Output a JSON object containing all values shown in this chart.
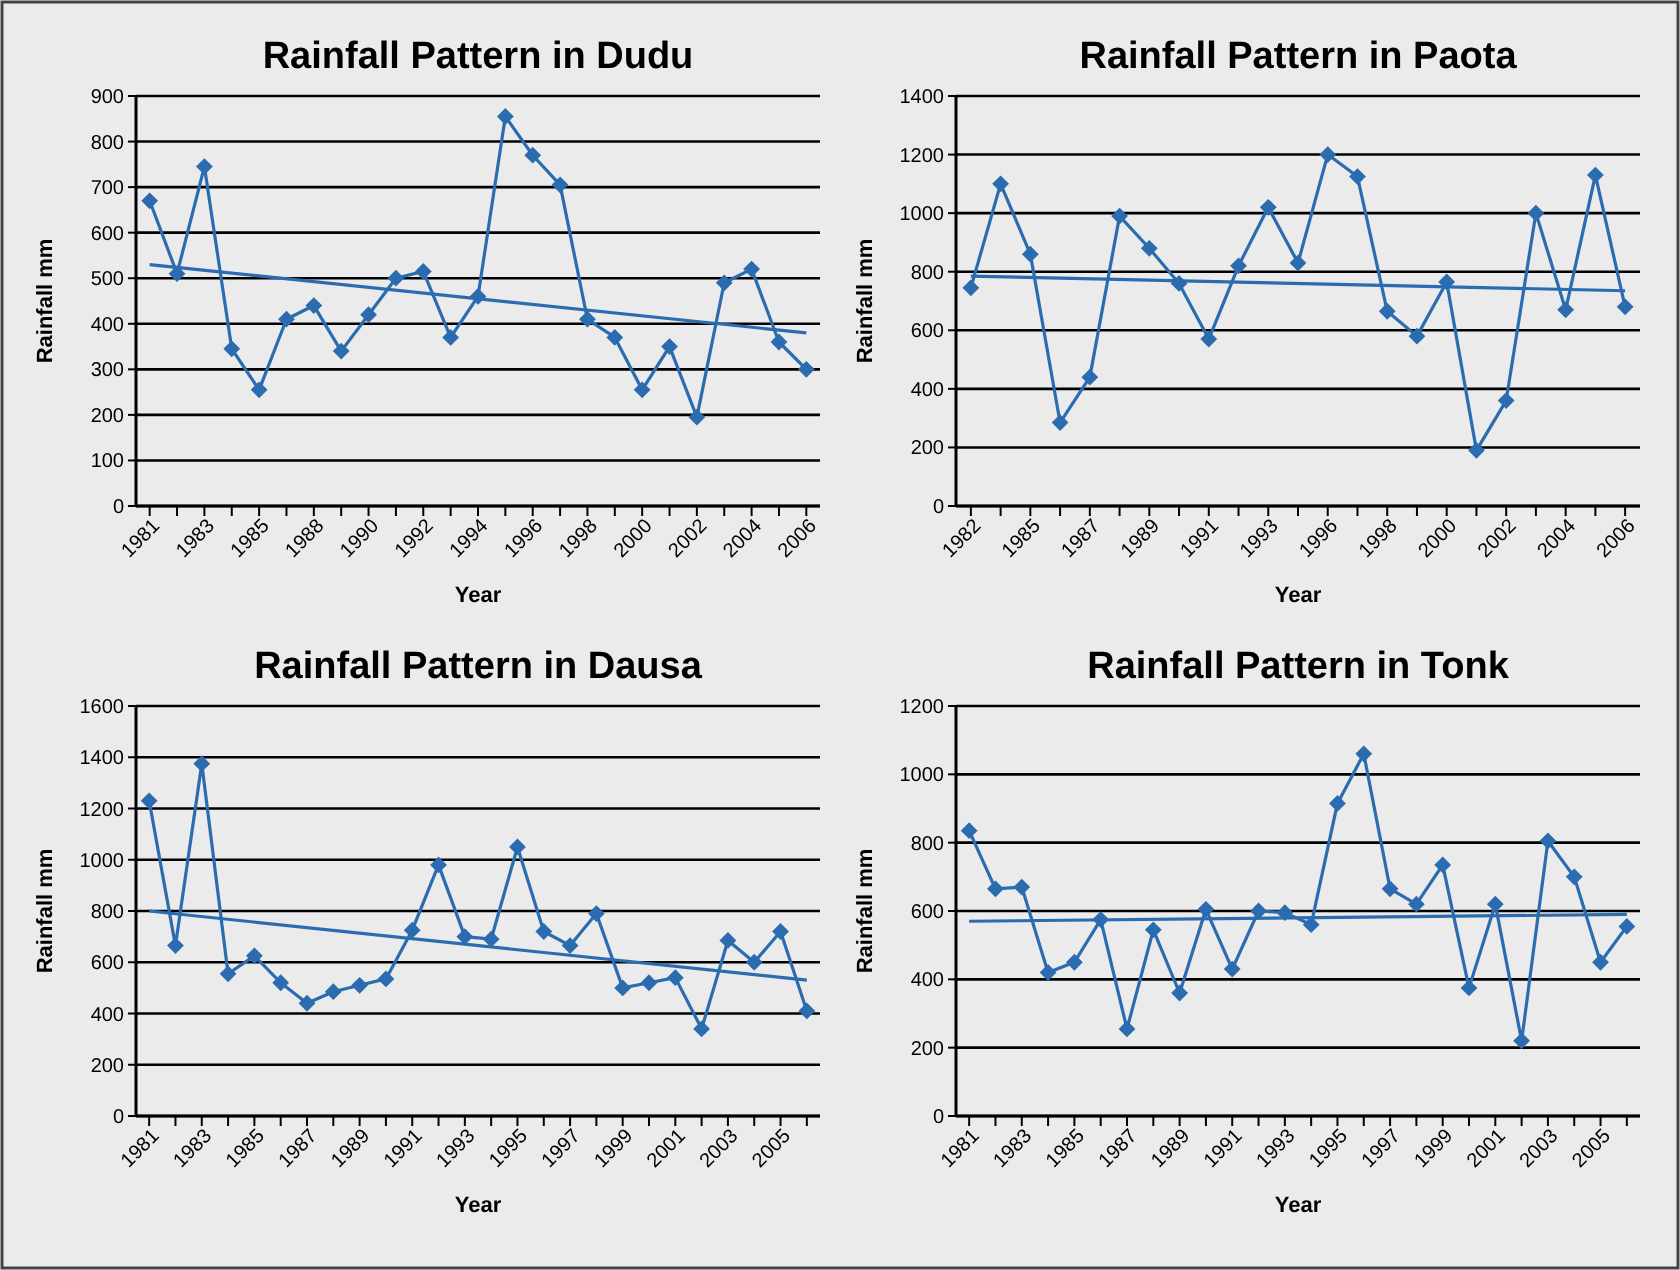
{
  "chart_data": [
    {
      "type": "line",
      "title": "Rainfall Pattern in Dudu",
      "xlabel": "Year",
      "ylabel": "Rainfall mm",
      "categories": [
        "1981",
        null,
        "1983",
        null,
        "1985",
        null,
        "1988",
        null,
        "1990",
        null,
        "1992",
        null,
        "1994",
        null,
        "1996",
        null,
        "1998",
        null,
        "2000",
        null,
        "2002",
        null,
        "2004",
        null,
        "2006"
      ],
      "series": [
        {
          "color": "#2b6cb0",
          "values": [
            670,
            510,
            745,
            345,
            255,
            410,
            440,
            340,
            420,
            500,
            515,
            370,
            460,
            855,
            770,
            705,
            410,
            370,
            255,
            350,
            195,
            490,
            520,
            360,
            300
          ]
        },
        {
          "type": "line",
          "color": "#2b6cb0",
          "marker": "none",
          "values": [
            530,
            null,
            null,
            null,
            null,
            null,
            null,
            null,
            null,
            null,
            null,
            null,
            null,
            null,
            null,
            null,
            null,
            null,
            null,
            null,
            null,
            null,
            null,
            null,
            380
          ]
        }
      ],
      "ylim": [
        0,
        900
      ],
      "yticks": [
        0,
        100,
        200,
        300,
        400,
        500,
        600,
        700,
        800,
        900
      ],
      "grid": "y",
      "marker": "diamond"
    },
    {
      "type": "line",
      "title": "Rainfall Pattern in Paota",
      "xlabel": "Year",
      "ylabel": "Rainfall mm",
      "categories": [
        "1982",
        null,
        "1985",
        null,
        "1987",
        null,
        "1989",
        null,
        "1991",
        null,
        "1993",
        null,
        "1996",
        null,
        "1998",
        null,
        "2000",
        null,
        "2002",
        null,
        "2004",
        null,
        "2006"
      ],
      "series": [
        {
          "color": "#2b6cb0",
          "values": [
            745,
            1100,
            860,
            285,
            440,
            990,
            880,
            760,
            570,
            820,
            1020,
            830,
            1200,
            1125,
            665,
            580,
            765,
            190,
            360,
            1000,
            670,
            1130,
            680
          ]
        },
        {
          "type": "line",
          "color": "#2b6cb0",
          "marker": "none",
          "values": [
            785,
            null,
            null,
            null,
            null,
            null,
            null,
            null,
            null,
            null,
            null,
            null,
            null,
            null,
            null,
            null,
            null,
            null,
            null,
            null,
            null,
            null,
            735
          ]
        }
      ],
      "ylim": [
        0,
        1400
      ],
      "yticks": [
        0,
        200,
        400,
        600,
        800,
        1000,
        1200,
        1400
      ],
      "grid": "y",
      "marker": "diamond"
    },
    {
      "type": "line",
      "title": "Rainfall Pattern in Dausa",
      "xlabel": "Year",
      "ylabel": "Rainfall mm",
      "categories": [
        "1981",
        null,
        "1983",
        null,
        "1985",
        null,
        "1987",
        null,
        "1989",
        null,
        "1991",
        null,
        "1993",
        null,
        "1995",
        null,
        "1997",
        null,
        "1999",
        null,
        "2001",
        null,
        "2003",
        null,
        "2005",
        null
      ],
      "series": [
        {
          "color": "#2b6cb0",
          "values": [
            1230,
            665,
            1375,
            555,
            625,
            520,
            440,
            485,
            510,
            535,
            725,
            980,
            700,
            690,
            1050,
            720,
            665,
            790,
            500,
            520,
            540,
            340,
            685,
            600,
            720,
            410
          ]
        },
        {
          "type": "line",
          "color": "#2b6cb0",
          "marker": "none",
          "values": [
            800,
            null,
            null,
            null,
            null,
            null,
            null,
            null,
            null,
            null,
            null,
            null,
            null,
            null,
            null,
            null,
            null,
            null,
            null,
            null,
            null,
            null,
            null,
            null,
            null,
            530
          ]
        }
      ],
      "ylim": [
        0,
        1600
      ],
      "yticks": [
        0,
        200,
        400,
        600,
        800,
        1000,
        1200,
        1400,
        1600
      ],
      "grid": "y",
      "marker": "diamond"
    },
    {
      "type": "line",
      "title": "Rainfall Pattern in Tonk",
      "xlabel": "Year",
      "ylabel": "Rainfall mm",
      "categories": [
        "1981",
        null,
        "1983",
        null,
        "1985",
        null,
        "1987",
        null,
        "1989",
        null,
        "1991",
        null,
        "1993",
        null,
        "1995",
        null,
        "1997",
        null,
        "1999",
        null,
        "2001",
        null,
        "2003",
        null,
        "2005",
        null
      ],
      "series": [
        {
          "color": "#2b6cb0",
          "values": [
            835,
            665,
            670,
            420,
            450,
            575,
            255,
            545,
            360,
            605,
            430,
            600,
            595,
            560,
            915,
            1060,
            665,
            620,
            735,
            375,
            620,
            220,
            805,
            700,
            450,
            555
          ]
        },
        {
          "type": "line",
          "color": "#2b6cb0",
          "marker": "none",
          "values": [
            570,
            null,
            null,
            null,
            null,
            null,
            null,
            null,
            null,
            null,
            null,
            null,
            null,
            null,
            null,
            null,
            null,
            null,
            null,
            null,
            null,
            null,
            null,
            null,
            null,
            590
          ]
        }
      ],
      "ylim": [
        0,
        1200
      ],
      "yticks": [
        0,
        200,
        400,
        600,
        800,
        1000,
        1200
      ],
      "grid": "y",
      "marker": "diamond"
    }
  ]
}
